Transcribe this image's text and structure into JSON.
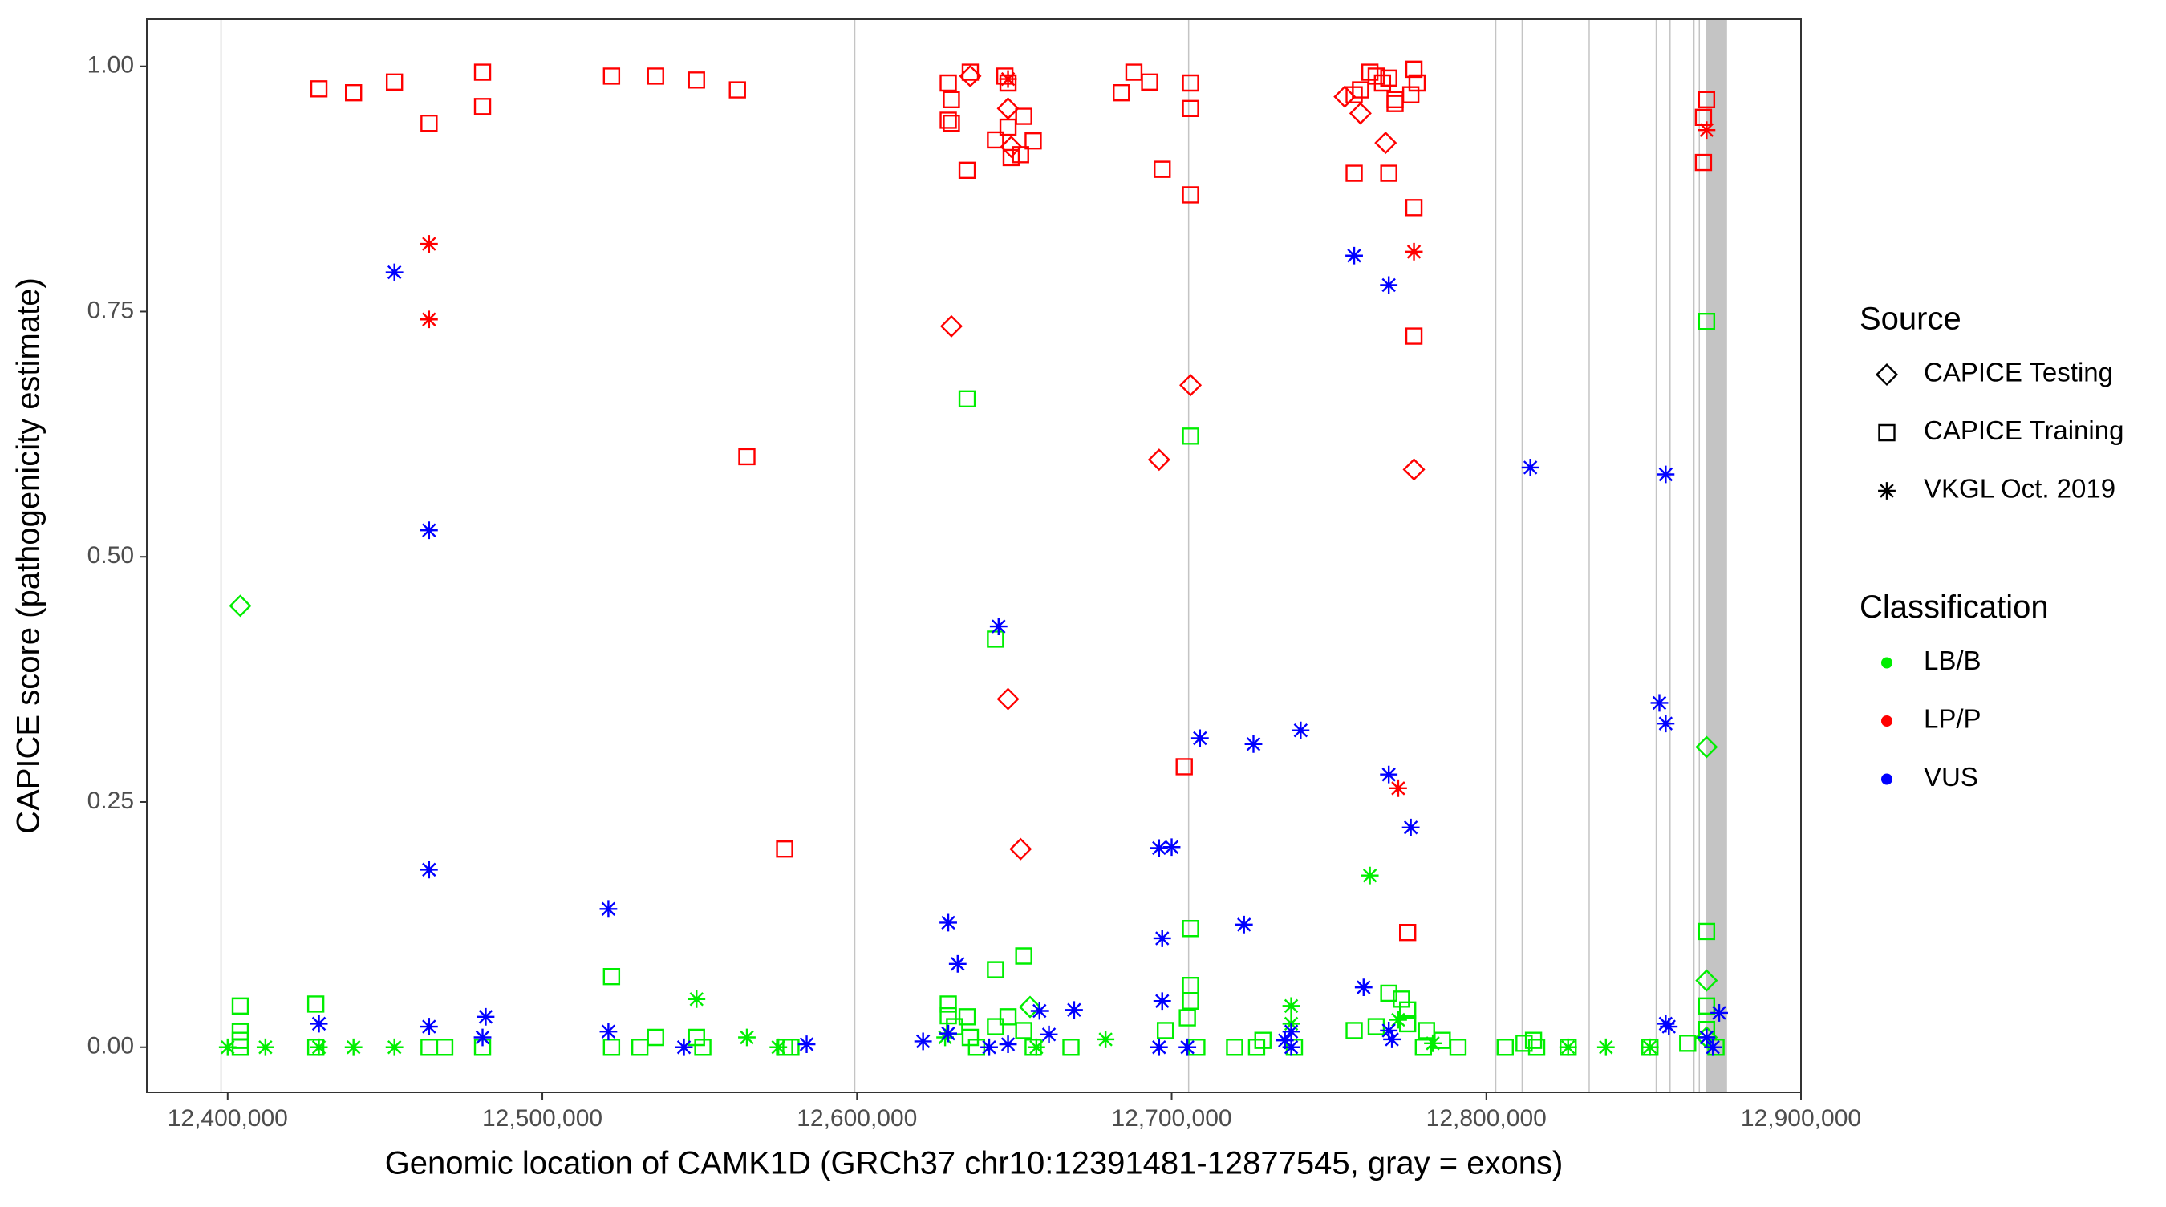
{
  "chart_data": {
    "type": "scatter",
    "x_label": "Genomic location of CAMK1D (GRCh37 chr10:12391481-12877545, gray = exons)",
    "y_label": "CAPICE score (pathogenicity estimate)",
    "xlim": [
      12374300,
      12900000
    ],
    "ylim": [
      -0.046,
      1.048
    ],
    "xticks": [
      {
        "value": 12400000,
        "label": "12,400,000"
      },
      {
        "value": 12500000,
        "label": "12,500,000"
      },
      {
        "value": 12600000,
        "label": "12,600,000"
      },
      {
        "value": 12700000,
        "label": "12,700,000"
      },
      {
        "value": 12800000,
        "label": "12,800,000"
      },
      {
        "value": 12900000,
        "label": "12,900,000"
      }
    ],
    "yticks": [
      {
        "value": 0,
        "label": "0.00"
      },
      {
        "value": 0.25,
        "label": "0.25"
      },
      {
        "value": 0.5,
        "label": "0.50"
      },
      {
        "value": 0.75,
        "label": "0.75"
      },
      {
        "value": 1,
        "label": "1.00"
      }
    ],
    "grid": false,
    "exon_color": "#c4c4c4",
    "exons": [
      [
        12397700,
        12397900
      ],
      [
        12599100,
        12599300
      ],
      [
        12705200,
        12705400
      ],
      [
        12802800,
        12803000
      ],
      [
        12811200,
        12811400
      ],
      [
        12832500,
        12832700
      ],
      [
        12853800,
        12854000
      ],
      [
        12858200,
        12858400
      ],
      [
        12865800,
        12866000
      ],
      [
        12867500,
        12867700
      ],
      [
        12869800,
        12876500
      ]
    ],
    "legends": [
      {
        "title": "Source",
        "items": [
          {
            "label": "CAPICE Testing",
            "shape": "diamond"
          },
          {
            "label": "CAPICE Training",
            "shape": "square"
          },
          {
            "label": "VKGL Oct. 2019",
            "shape": "asterisk"
          }
        ]
      },
      {
        "title": "Classification",
        "items": [
          {
            "label": "LB/B",
            "color": "#00ee00"
          },
          {
            "label": "LP/P",
            "color": "#ff0000"
          },
          {
            "label": "VUS",
            "color": "#0000ff"
          }
        ]
      }
    ],
    "series": [
      {
        "source": "CAPICE Training",
        "classification": "LB/B",
        "x": [
          12404000,
          12404000,
          12404000,
          12404000,
          12428000,
          12428000,
          12464000,
          12469000,
          12481000,
          12522000,
          12522000,
          12531000,
          12536000,
          12549000,
          12551000,
          12577000,
          12579000,
          12629000,
          12629000,
          12631000,
          12635000,
          12636000,
          12638000,
          12644000,
          12648000,
          12653000,
          12653000,
          12656000,
          12668000,
          12635000,
          12644000,
          12644000,
          12706000,
          12706000,
          12706000,
          12706000,
          12705000,
          12698000,
          12708000,
          12720000,
          12727000,
          12729000,
          12739000,
          12758000,
          12765000,
          12769000,
          12773000,
          12775000,
          12781000,
          12786000,
          12791000,
          12806000,
          12812000,
          12815000,
          12816000,
          12826000,
          12852000,
          12864000,
          12870000,
          12870000,
          12870000,
          12870000,
          12873000,
          12775000,
          12780000
        ],
        "y": [
          0.042,
          0.016,
          0.007,
          0,
          0.044,
          0,
          0,
          0,
          0,
          0.072,
          0,
          0,
          0.01,
          0.01,
          0,
          0,
          0,
          0.044,
          0.032,
          0.021,
          0.031,
          0.01,
          0,
          0.021,
          0.031,
          0.093,
          0.017,
          0,
          0,
          0.661,
          0.416,
          0.079,
          0.623,
          0.121,
          0.063,
          0.047,
          0.03,
          0.017,
          0,
          0,
          0,
          0.007,
          0,
          0.017,
          0.021,
          0.055,
          0.049,
          0.038,
          0.017,
          0.007,
          0,
          0,
          0.004,
          0.007,
          0,
          0,
          0,
          0.004,
          0.74,
          0.118,
          0.042,
          0.018,
          0,
          0.024,
          0
        ]
      },
      {
        "source": "CAPICE Testing",
        "classification": "LB/B",
        "x": [
          12404000,
          12870000,
          12870000,
          12655000,
          12870000
        ],
        "y": [
          0.45,
          0.306,
          0.068,
          0.041,
          0.01
        ]
      },
      {
        "source": "VKGL Oct. 2019",
        "classification": "LB/B",
        "x": [
          12400000,
          12412000,
          12429000,
          12440000,
          12453000,
          12549000,
          12565000,
          12575000,
          12679000,
          12738000,
          12738000,
          12763000,
          12772000,
          12783000,
          12826000,
          12838000,
          12852000,
          12657000,
          12628000
        ],
        "y": [
          0,
          0,
          0,
          0,
          0,
          0.049,
          0.01,
          0,
          0.008,
          0.042,
          0.024,
          0.175,
          0.028,
          0.004,
          0,
          0,
          0,
          0,
          0.01
        ]
      },
      {
        "source": "CAPICE Training",
        "classification": "LP/P",
        "x": [
          12429000,
          12440000,
          12453000,
          12464000,
          12481000,
          12481000,
          12522000,
          12536000,
          12549000,
          12562000,
          12565000,
          12577000,
          12629000,
          12630000,
          12629000,
          12630000,
          12635000,
          12636000,
          12647000,
          12648000,
          12644000,
          12648000,
          12649000,
          12653000,
          12652000,
          12656000,
          12684000,
          12688000,
          12693000,
          12697000,
          12706000,
          12706000,
          12706000,
          12704000,
          12758000,
          12760000,
          12763000,
          12765000,
          12767000,
          12769000,
          12771000,
          12771000,
          12758000,
          12769000,
          12777000,
          12777000,
          12775000,
          12777000,
          12778000,
          12776000,
          12870000,
          12869000,
          12869000
        ],
        "y": [
          0.977,
          0.973,
          0.984,
          0.942,
          0.994,
          0.959,
          0.99,
          0.99,
          0.986,
          0.976,
          0.602,
          0.202,
          0.983,
          0.966,
          0.945,
          0.942,
          0.894,
          0.994,
          0.99,
          0.983,
          0.925,
          0.938,
          0.907,
          0.949,
          0.91,
          0.924,
          0.973,
          0.994,
          0.984,
          0.895,
          0.983,
          0.957,
          0.869,
          0.286,
          0.971,
          0.976,
          0.994,
          0.99,
          0.983,
          0.988,
          0.966,
          0.962,
          0.891,
          0.891,
          0.856,
          0.725,
          0.117,
          0.997,
          0.983,
          0.971,
          0.966,
          0.948,
          0.902
        ]
      },
      {
        "source": "CAPICE Testing",
        "classification": "LP/P",
        "x": [
          12636000,
          12648000,
          12649000,
          12630000,
          12706000,
          12696000,
          12777000,
          12648000,
          12652000,
          12760000,
          12768000,
          12755000
        ],
        "y": [
          0.99,
          0.957,
          0.918,
          0.735,
          0.675,
          0.599,
          0.589,
          0.355,
          0.202,
          0.952,
          0.922,
          0.969
        ]
      },
      {
        "source": "VKGL Oct. 2019",
        "classification": "LP/P",
        "x": [
          12464000,
          12464000,
          12648000,
          12777000,
          12772000,
          12870000
        ],
        "y": [
          0.819,
          0.742,
          0.987,
          0.811,
          0.264,
          0.935
        ]
      },
      {
        "source": "VKGL Oct. 2019",
        "classification": "VUS",
        "x": [
          12453000,
          12464000,
          12464000,
          12429000,
          12464000,
          12481000,
          12482000,
          12521000,
          12521000,
          12545000,
          12584000,
          12621000,
          12629000,
          12632000,
          12629000,
          12645000,
          12642000,
          12648000,
          12658000,
          12661000,
          12669000,
          12696000,
          12700000,
          12709000,
          12697000,
          12697000,
          12726000,
          12741000,
          12723000,
          12736000,
          12738000,
          12738000,
          12758000,
          12769000,
          12761000,
          12769000,
          12769000,
          12776000,
          12770000,
          12814000,
          12855000,
          12857000,
          12857000,
          12857000,
          12858000,
          12874000,
          12870000,
          12872000,
          12696000,
          12705000
        ],
        "y": [
          0.79,
          0.527,
          0.181,
          0.024,
          0.021,
          0.01,
          0.031,
          0.141,
          0.016,
          0,
          0.003,
          0.006,
          0.127,
          0.085,
          0.014,
          0.429,
          0,
          0.003,
          0.037,
          0.013,
          0.038,
          0.203,
          0.204,
          0.315,
          0.111,
          0.047,
          0.309,
          0.323,
          0.125,
          0.007,
          0.016,
          0,
          0.807,
          0.777,
          0.061,
          0.017,
          0.278,
          0.224,
          0.008,
          0.591,
          0.351,
          0.33,
          0.584,
          0.024,
          0.021,
          0.035,
          0.01,
          0,
          0,
          0
        ]
      }
    ]
  }
}
